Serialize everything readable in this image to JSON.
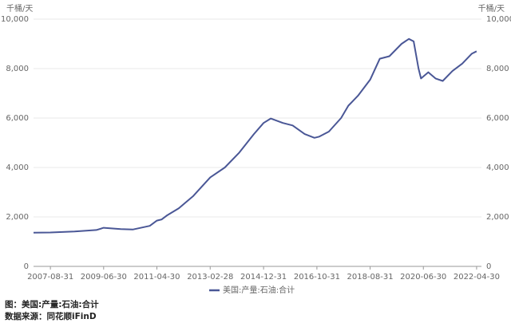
{
  "chart_data": {
    "type": "line",
    "y_unit": "千桶/天",
    "x": [
      "2007-01-31",
      "2007-08-31",
      "2008-06-30",
      "2009-03-31",
      "2009-06-30",
      "2010-01-31",
      "2010-06-30",
      "2011-01-31",
      "2011-04-30",
      "2011-06-30",
      "2011-08-31",
      "2012-01-31",
      "2012-07-31",
      "2013-02-28",
      "2013-08-31",
      "2014-02-28",
      "2014-08-31",
      "2014-12-31",
      "2015-03-31",
      "2015-08-31",
      "2015-12-31",
      "2016-05-31",
      "2016-09-30",
      "2016-11-30",
      "2017-03-31",
      "2017-08-31",
      "2017-11-30",
      "2018-03-31",
      "2018-08-31",
      "2018-12-31",
      "2019-04-30",
      "2019-09-30",
      "2019-12-31",
      "2020-02-29",
      "2020-04-30",
      "2020-05-31",
      "2020-08-31",
      "2020-11-30",
      "2021-02-28",
      "2021-06-30",
      "2021-10-31",
      "2022-02-28",
      "2022-04-30"
    ],
    "series": [
      {
        "name": "美国:产量:石油:合计",
        "color": "#4a5796",
        "values": [
          1360,
          1370,
          1410,
          1470,
          1560,
          1510,
          1490,
          1640,
          1850,
          1900,
          2050,
          2350,
          2850,
          3600,
          4000,
          4600,
          5350,
          5800,
          5980,
          5800,
          5700,
          5350,
          5200,
          5250,
          5450,
          6000,
          6500,
          6900,
          7550,
          8400,
          8500,
          9000,
          9200,
          9100,
          8000,
          7600,
          7850,
          7600,
          7500,
          7900,
          8200,
          8600,
          8700
        ]
      }
    ],
    "xlim": [
      "2007-01-31",
      "2022-06-30"
    ],
    "xticks": [
      "2007-08-31",
      "2009-06-30",
      "2011-04-30",
      "2013-02-28",
      "2014-12-31",
      "2016-10-31",
      "2018-08-31",
      "2020-06-30",
      "2022-04-30"
    ],
    "ylim": [
      0,
      10000
    ],
    "yticks": [
      0,
      {
        "value": 2000,
        "label": "2,000"
      },
      {
        "value": 4000,
        "label": "4,000"
      },
      {
        "value": 6000,
        "label": "6,000"
      },
      {
        "value": 8000,
        "label": "8,000"
      },
      {
        "value": 10000,
        "label": "10,000"
      }
    ],
    "grid": true,
    "notes": [
      "图：美国:产量:石油:合计",
      "数据来源：同花顺iFinD"
    ]
  }
}
